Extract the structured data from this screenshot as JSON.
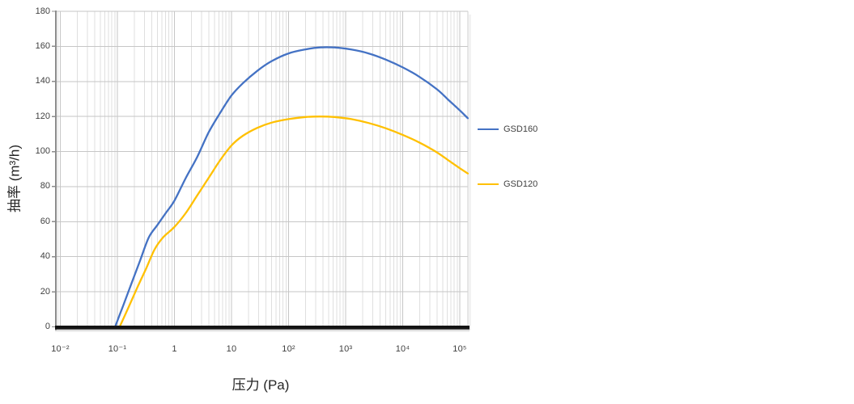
{
  "chart_data": {
    "type": "line",
    "title": "",
    "xlabel": "压力 (Pa)",
    "ylabel": "抽率 (m³/h)",
    "x_scale": "log10",
    "x_range_log10": [
      -2.078,
      5.142
    ],
    "ylim": [
      0,
      180
    ],
    "y_tick_step": 20,
    "y_tick_labels": [
      "0",
      "20",
      "40",
      "60",
      "80",
      "100",
      "120",
      "140",
      "160",
      "180"
    ],
    "x_ticks": [
      {
        "log10": -2,
        "label": "10⁻²"
      },
      {
        "log10": -1,
        "label": "10⁻¹"
      },
      {
        "log10": 0,
        "label": "1"
      },
      {
        "log10": 1,
        "label": "10"
      },
      {
        "log10": 2,
        "label": "10²"
      },
      {
        "log10": 3,
        "label": "10³"
      },
      {
        "log10": 4,
        "label": "10⁴"
      },
      {
        "log10": 5,
        "label": "10⁵"
      }
    ],
    "grid": {
      "major_color": "#c6c6c6",
      "minor_color": "#dfdfdf",
      "minor_x_log": true,
      "minor_y": false
    },
    "axis_colors": {
      "y_axis": "#8c8c8c",
      "x_axis": "#141414",
      "plot_right_border": "#cfcfcf"
    },
    "legend_position": "right",
    "series": [
      {
        "name": "GSD160",
        "color": "#4472C4",
        "points_log10P_speed": [
          [
            -1.04,
            0
          ],
          [
            -0.9,
            12
          ],
          [
            -0.75,
            25
          ],
          [
            -0.6,
            38
          ],
          [
            -0.45,
            51
          ],
          [
            -0.3,
            58
          ],
          [
            -0.15,
            65
          ],
          [
            0,
            72
          ],
          [
            0.2,
            85
          ],
          [
            0.4,
            97
          ],
          [
            0.6,
            111
          ],
          [
            0.8,
            122
          ],
          [
            1.0,
            132
          ],
          [
            1.2,
            139
          ],
          [
            1.45,
            146
          ],
          [
            1.7,
            151.5
          ],
          [
            2.0,
            156
          ],
          [
            2.3,
            158.3
          ],
          [
            2.55,
            159.4
          ],
          [
            2.8,
            159.4
          ],
          [
            3.1,
            158.2
          ],
          [
            3.4,
            156
          ],
          [
            3.7,
            152.5
          ],
          [
            4.0,
            148
          ],
          [
            4.3,
            142.5
          ],
          [
            4.6,
            135.5
          ],
          [
            4.8,
            129.5
          ],
          [
            5.0,
            123.5
          ],
          [
            5.14,
            119
          ]
        ]
      },
      {
        "name": "GSD120",
        "color": "#FFC000",
        "points_log10P_speed": [
          [
            -0.96,
            0
          ],
          [
            -0.8,
            11.5
          ],
          [
            -0.65,
            22.5
          ],
          [
            -0.5,
            33
          ],
          [
            -0.35,
            44
          ],
          [
            -0.2,
            51
          ],
          [
            0,
            57
          ],
          [
            0.2,
            65
          ],
          [
            0.4,
            75
          ],
          [
            0.6,
            85
          ],
          [
            0.8,
            95
          ],
          [
            1.0,
            103.5
          ],
          [
            1.2,
            109
          ],
          [
            1.45,
            113.5
          ],
          [
            1.7,
            116.5
          ],
          [
            2.0,
            118.5
          ],
          [
            2.3,
            119.7
          ],
          [
            2.55,
            120
          ],
          [
            2.8,
            119.7
          ],
          [
            3.1,
            118.5
          ],
          [
            3.4,
            116.3
          ],
          [
            3.7,
            113.3
          ],
          [
            4.0,
            109.5
          ],
          [
            4.3,
            105
          ],
          [
            4.6,
            99.5
          ],
          [
            4.8,
            95
          ],
          [
            5.0,
            90.5
          ],
          [
            5.14,
            87.5
          ]
        ]
      }
    ]
  }
}
